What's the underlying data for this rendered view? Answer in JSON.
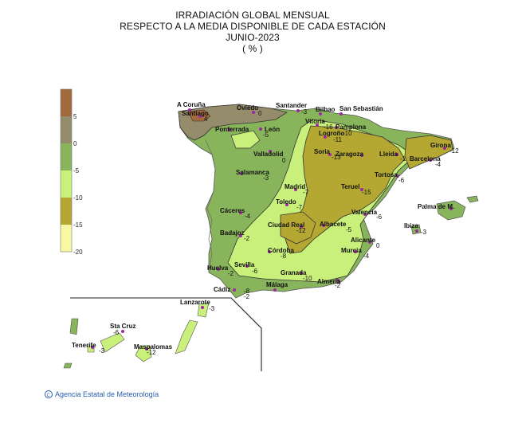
{
  "title": {
    "line1": "IRRADIACIÓN GLOBAL MENSUAL",
    "line2": "RESPECTO A LA MEDIA DISPONIBLE DE CADA ESTACIÓN",
    "line3": "JUNIO-2023",
    "line4": "( % )"
  },
  "legend": {
    "labels": [
      "5",
      "0",
      "-5",
      "-10",
      "-15",
      "-20"
    ],
    "classes": [
      {
        "range": "> 5",
        "color": "#a06a3c"
      },
      {
        "range": "0 to 5",
        "color": "#948c6a"
      },
      {
        "range": "-5 to 0",
        "color": "#88b45c"
      },
      {
        "range": "-10 to -5",
        "color": "#c8f07a"
      },
      {
        "range": "-15 to -10",
        "color": "#b4a832"
      },
      {
        "range": "-20 to -15",
        "color": "#f8f8a4"
      }
    ]
  },
  "stations": [
    {
      "name": "A Coruña",
      "value": ""
    },
    {
      "name": "Santiago",
      "value": "4"
    },
    {
      "name": "Oviedo",
      "value": "0"
    },
    {
      "name": "Santander",
      "value": "-3"
    },
    {
      "name": "Bilbao",
      "value": ""
    },
    {
      "name": "San Sebastián",
      "value": ""
    },
    {
      "name": "Vitoria",
      "value": "-16"
    },
    {
      "name": "Pamplona",
      "value": ""
    },
    {
      "name": "Logroño",
      "value": "-10"
    },
    {
      "name": "",
      "value": "-11"
    },
    {
      "name": "Ponferrada",
      "value": ""
    },
    {
      "name": "León",
      "value": "-5"
    },
    {
      "name": "Valladolid",
      "value": "0"
    },
    {
      "name": "Soria",
      "value": "-13"
    },
    {
      "name": "Zaragoza",
      "value": ""
    },
    {
      "name": "Lleida",
      "value": "-1"
    },
    {
      "name": "Girona",
      "value": "-12"
    },
    {
      "name": "Barcelona",
      "value": "-4"
    },
    {
      "name": "Salamanca",
      "value": "-3"
    },
    {
      "name": "Tortosa",
      "value": "-6"
    },
    {
      "name": "Madrid",
      "value": "-7"
    },
    {
      "name": "Teruel",
      "value": "-15"
    },
    {
      "name": "Toledo",
      "value": "-7"
    },
    {
      "name": "Cáceres",
      "value": "-4"
    },
    {
      "name": "Valencia",
      "value": "-6"
    },
    {
      "name": "Palma de M.",
      "value": ""
    },
    {
      "name": "Ciudad Real",
      "value": "-12"
    },
    {
      "name": "Albacete",
      "value": "-5"
    },
    {
      "name": "Ibiza",
      "value": "-3"
    },
    {
      "name": "Badajoz",
      "value": "-2"
    },
    {
      "name": "Alicante",
      "value": "0"
    },
    {
      "name": "Córdoba",
      "value": "-8"
    },
    {
      "name": "Murcia",
      "value": "-4"
    },
    {
      "name": "Huelva",
      "value": "-2"
    },
    {
      "name": "Sevilla",
      "value": "-6"
    },
    {
      "name": "Granada",
      "value": "-10"
    },
    {
      "name": "Almería",
      "value": "-2"
    },
    {
      "name": "Cádiz",
      "value": "-8"
    },
    {
      "name": "",
      "value": "-2"
    },
    {
      "name": "Málaga",
      "value": ""
    },
    {
      "name": "Lanzarote",
      "value": "-3"
    },
    {
      "name": "Sta Cruz",
      "value": "-6"
    },
    {
      "name": "Tenerife",
      "value": "-3"
    },
    {
      "name": "Maspalomas",
      "value": "-12"
    }
  ],
  "credit": "Agencia Estatal de Meteorología"
}
